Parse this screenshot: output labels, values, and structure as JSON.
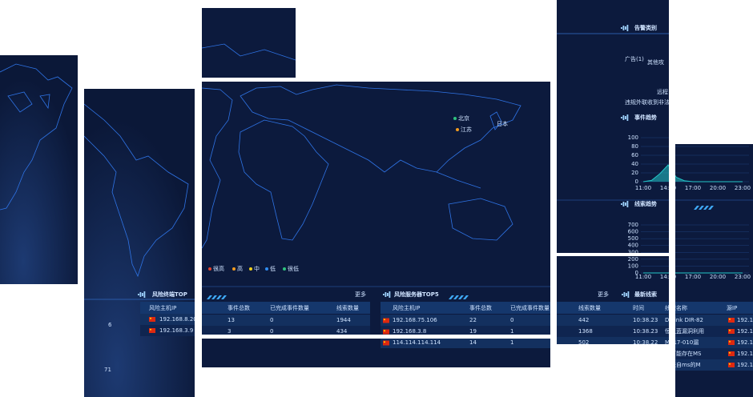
{
  "terminal_panel": {
    "title": "风险终端TOP",
    "columns": [
      "风险主机IP"
    ],
    "rows": [
      [
        "192.168.8.20"
      ],
      [
        "192.168.3.9"
      ]
    ],
    "stats": [
      6,
      71
    ]
  },
  "map": {
    "legend": [
      "很高",
      "高",
      "中",
      "低",
      "很低"
    ],
    "legend_colors": [
      "#e5452f",
      "#f39c1f",
      "#f2d21b",
      "#2f8cf0",
      "#2ec27e"
    ],
    "places": [
      "北京",
      "江苏",
      "日本"
    ]
  },
  "terminal_table": {
    "more": "更多",
    "columns": [
      "事件总数",
      "已完成事件数量",
      "线索数量"
    ],
    "rows": [
      [
        13,
        0,
        1944
      ],
      [
        3,
        0,
        434
      ]
    ]
  },
  "server_panel": {
    "title": "风险服务器TOP5",
    "columns": [
      "风险主机IP",
      "事件总数",
      "已完成事件数量"
    ],
    "rows": [
      [
        "192.168.75.106",
        22,
        0
      ],
      [
        "192.168.3.8",
        19,
        1
      ],
      [
        "114.114.114.114",
        14,
        1
      ]
    ]
  },
  "alarm_panel": {
    "title": "告警类别",
    "labels": [
      "广告(1)",
      "其他攻",
      "远程",
      "违规外联收到非法"
    ]
  },
  "event_trend": {
    "type": "area",
    "title": "事件趋势",
    "categories": [
      "11:00",
      null,
      null,
      "14:00",
      null,
      null,
      "17:00",
      null,
      null,
      "20:00",
      null,
      null,
      "23:00"
    ],
    "values": [
      0,
      3,
      18,
      38,
      10,
      2,
      0,
      0,
      0,
      0,
      0,
      0,
      0
    ],
    "color": "#23c6c8",
    "ylim": [
      0,
      100
    ],
    "yticks": [
      0,
      20,
      40,
      60,
      80,
      100
    ]
  },
  "clue_trend": {
    "type": "line",
    "title": "线索趋势",
    "categories": [
      "11:00",
      null,
      null,
      "14:00",
      null,
      null,
      "17:00",
      null,
      null,
      "20:00",
      null,
      null,
      "23:00"
    ],
    "values": [
      0,
      0,
      0,
      0,
      0,
      0,
      0,
      0,
      0,
      0,
      0,
      0,
      0
    ],
    "color": "#23c6c8",
    "ylim": [
      0,
      700
    ],
    "yticks": [
      0,
      100,
      200,
      300,
      400,
      500,
      600,
      700
    ]
  },
  "latest_clues": {
    "more": "更多",
    "title": "最新线索",
    "columns": [
      "线索数量",
      "时间",
      "线索名称",
      "源IP"
    ],
    "rows": [
      [
        442,
        "10:38.23",
        "D-Link DIR-82",
        "192.1"
      ],
      [
        1368,
        "10:38.23",
        "恒之蓝漏洞利用",
        "192.1"
      ],
      [
        502,
        "10:38.22",
        "MS17-010漏",
        "192.1"
      ],
      [
        null,
        null,
        "到可能存在MS",
        "192.1"
      ],
      [
        null,
        null,
        "到来自ms的M",
        "192.1"
      ]
    ]
  }
}
